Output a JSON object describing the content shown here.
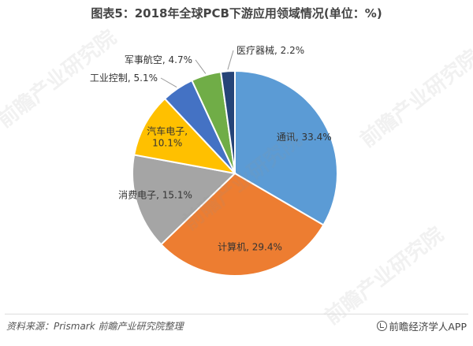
{
  "title": "图表5：2018年全球PCB下游应用领域情况(单位：%)",
  "chart_data": {
    "type": "pie",
    "title": "图表5：2018年全球PCB下游应用领域情况(单位：%)",
    "start_angle_deg": 0,
    "direction": "clockwise",
    "slices": [
      {
        "label": "通讯",
        "value": 33.4,
        "display": "通讯, 33.4%",
        "color": "#5B9BD5"
      },
      {
        "label": "计算机",
        "value": 29.4,
        "display": "计算机, 29.4%",
        "color": "#ED7D31"
      },
      {
        "label": "消费电子",
        "value": 15.1,
        "display": "消费电子, 15.1%",
        "color": "#A5A5A5"
      },
      {
        "label": "汽车电子",
        "value": 10.1,
        "display_lines": [
          "汽车电子,",
          "10.1%"
        ],
        "color": "#FFC000"
      },
      {
        "label": "工业控制",
        "value": 5.1,
        "display": "工业控制, 5.1%",
        "color": "#4472C4"
      },
      {
        "label": "军事航空",
        "value": 4.7,
        "display": "军事航空, 4.7%",
        "color": "#70AD47"
      },
      {
        "label": "医疗器械",
        "value": 2.2,
        "display": "医疗器械, 2.2%",
        "color": "#264478"
      }
    ]
  },
  "footer": {
    "source": "资料来源：Prismark 前瞻产业研究院整理",
    "brand": "前瞻经济学人APP"
  },
  "watermarks": [
    "前瞻产业研究院",
    "前瞻产业研究院",
    "前瞻产业研究院",
    "前瞻产业研究院"
  ]
}
